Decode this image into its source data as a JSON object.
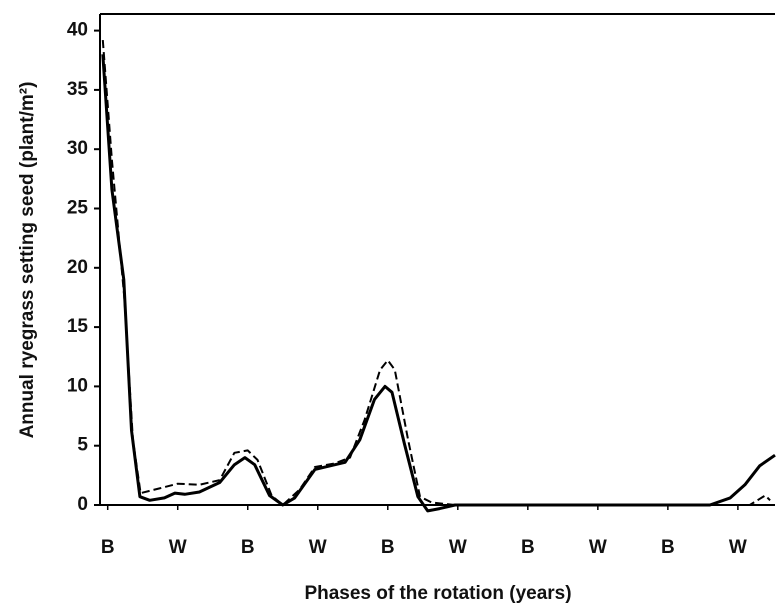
{
  "chart_data": {
    "type": "line",
    "y_label": "Annual ryegrass setting seed (plant/m²)",
    "x_label": "Phases of the rotation (years)",
    "xlim": [
      -0.11,
      9.53
    ],
    "xticks": [
      {
        "value": 0,
        "label": "B"
      },
      {
        "value": 1,
        "label": "W"
      },
      {
        "value": 2,
        "label": "B"
      },
      {
        "value": 3,
        "label": "W"
      },
      {
        "value": 4,
        "label": "B"
      },
      {
        "value": 5,
        "label": "W"
      },
      {
        "value": 6,
        "label": "B"
      },
      {
        "value": 7,
        "label": "W"
      },
      {
        "value": 8,
        "label": "B"
      },
      {
        "value": 9,
        "label": "W"
      }
    ],
    "ylim": [
      0,
      41.4
    ],
    "yticks": [
      0,
      5,
      10,
      15,
      20,
      25,
      30,
      35,
      40
    ],
    "series": [
      {
        "color": "#000000",
        "dash": false,
        "x": [
          -0.07,
          0.06,
          0.23,
          0.34,
          0.46,
          0.6,
          0.81,
          0.96,
          1.1,
          1.31,
          1.6,
          1.81,
          1.96,
          2.1,
          2.31,
          2.5,
          2.67,
          2.96,
          3.17,
          3.39,
          3.6,
          3.81,
          3.96,
          4.06,
          4.24,
          4.43,
          4.57,
          4.74,
          4.96,
          8.6,
          8.89,
          9.1,
          9.31,
          9.53
        ],
        "values": [
          38,
          26.6,
          19,
          6.3,
          0.7,
          0.4,
          0.6,
          1.0,
          0.9,
          1.1,
          1.9,
          3.4,
          4.0,
          3.4,
          0.8,
          0,
          0.6,
          3.0,
          3.3,
          3.6,
          5.5,
          8.9,
          10,
          9.5,
          5.1,
          0.7,
          -0.5,
          -0.3,
          0,
          0,
          0.6,
          1.7,
          3.3,
          4.2
        ]
      },
      {
        "color": "#000000",
        "dash": true,
        "x": [
          -0.07,
          0.06,
          0.24,
          0.36,
          0.47,
          0.74,
          1.0,
          1.31,
          1.6,
          1.81,
          2.0,
          2.14,
          2.34,
          2.5,
          2.74,
          2.96,
          3.24,
          3.46,
          3.67,
          3.89,
          4.0,
          4.1,
          4.29,
          4.46,
          4.63,
          4.96,
          9.17,
          9.39,
          9.46
        ],
        "values": [
          39.2,
          29.1,
          17.3,
          5.5,
          1.0,
          1.4,
          1.8,
          1.7,
          2.1,
          4.4,
          4.6,
          3.8,
          0.8,
          0,
          1.3,
          3.2,
          3.5,
          4.0,
          7.2,
          11.4,
          12.2,
          11.4,
          5.5,
          0.7,
          0.2,
          0,
          0,
          0.8,
          0.4
        ]
      }
    ]
  }
}
